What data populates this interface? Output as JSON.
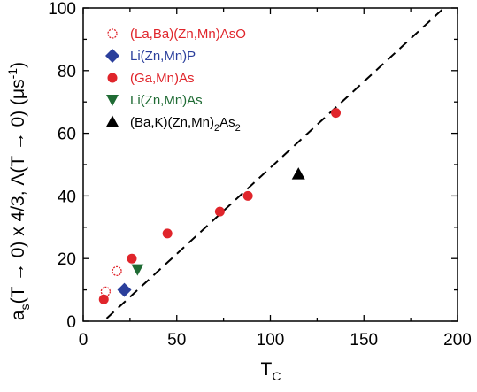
{
  "chart_data": {
    "type": "scatter",
    "xlabel": "T",
    "xlabel_sub": "C",
    "ylabel_parts": {
      "a": "a",
      "a_sub": "s",
      "mid": "(T → 0) x 4/3, Λ(T → 0) (μs",
      "exp": "-1",
      "end": ")"
    },
    "xlim": [
      0,
      200
    ],
    "ylim": [
      0,
      100
    ],
    "xticks": [
      0,
      50,
      100,
      150,
      200
    ],
    "yticks": [
      0,
      20,
      40,
      60,
      80,
      100
    ],
    "grid": false,
    "legend_position": "top-left",
    "series": [
      {
        "name": "(La,Ba)(Zn,Mn)AsO",
        "marker": "open-circle",
        "color": "#e0252b",
        "x": [
          12,
          18
        ],
        "y": [
          9.5,
          16
        ]
      },
      {
        "name": "Li(Zn,Mn)P",
        "marker": "diamond",
        "color": "#2b3f9c",
        "x": [
          22
        ],
        "y": [
          10
        ]
      },
      {
        "name": "(Ga,Mn)As",
        "marker": "filled-circle",
        "color": "#e0252b",
        "x": [
          11,
          26,
          45,
          73,
          88,
          135
        ],
        "y": [
          7,
          20,
          28,
          35,
          40,
          66.5
        ]
      },
      {
        "name": "Li(Zn,Mn)As",
        "marker": "triangle-down",
        "color": "#1f6b34",
        "x": [
          29
        ],
        "y": [
          16.5
        ]
      },
      {
        "name": "(Ba,K)(Zn,Mn)2As2",
        "label_parts": [
          "(Ba,K)(Zn,Mn)",
          "2",
          "As",
          "2"
        ],
        "marker": "triangle-up",
        "color": "#000000",
        "x": [
          115
        ],
        "y": [
          47
        ]
      }
    ],
    "reference_line": {
      "style": "dashed",
      "color": "#000000",
      "x": [
        0,
        200
      ],
      "y": [
        -6,
        104
      ]
    }
  }
}
